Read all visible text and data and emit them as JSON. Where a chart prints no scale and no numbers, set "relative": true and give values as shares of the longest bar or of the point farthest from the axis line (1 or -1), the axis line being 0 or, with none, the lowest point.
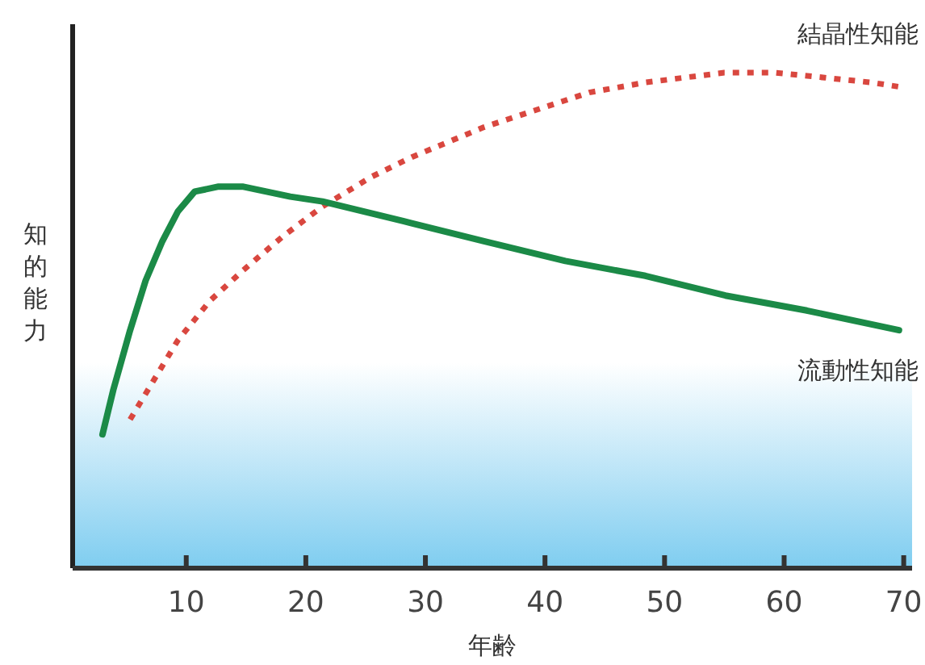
{
  "chart_data": {
    "type": "line",
    "relative": true,
    "xlabel": "年齢",
    "ylabel": "知的能力",
    "xlim": [
      0.5,
      70.7
    ],
    "xticks": [
      10,
      20,
      30,
      40,
      50,
      60,
      70
    ],
    "series": [
      {
        "name": "結晶性知能",
        "color": "#d9473f",
        "line_style": "dotted",
        "x": [
          5.3,
          7.3,
          9.3,
          12.0,
          14.7,
          18.1,
          21.4,
          25.5,
          28.9,
          34.9,
          43.7,
          48.4,
          55.0,
          59.2,
          63.4,
          67.3,
          70.0
        ],
        "values": [
          0.3,
          0.38,
          0.46,
          0.54,
          0.6,
          0.67,
          0.73,
          0.79,
          0.83,
          0.89,
          0.96,
          0.98,
          1.0,
          1.0,
          0.99,
          0.98,
          0.97
        ]
      },
      {
        "name": "流動性知能",
        "color": "#1b8a47",
        "line_style": "solid",
        "x": [
          3.0,
          3.9,
          5.3,
          6.6,
          8.0,
          9.3,
          10.7,
          12.7,
          14.7,
          16.7,
          18.7,
          21.4,
          28.2,
          34.9,
          41.7,
          48.4,
          55.1,
          61.9,
          69.6
        ],
        "values": [
          0.27,
          0.36,
          0.48,
          0.58,
          0.66,
          0.72,
          0.76,
          0.77,
          0.77,
          0.76,
          0.75,
          0.74,
          0.7,
          0.66,
          0.62,
          0.59,
          0.55,
          0.52,
          0.48
        ]
      }
    ]
  }
}
